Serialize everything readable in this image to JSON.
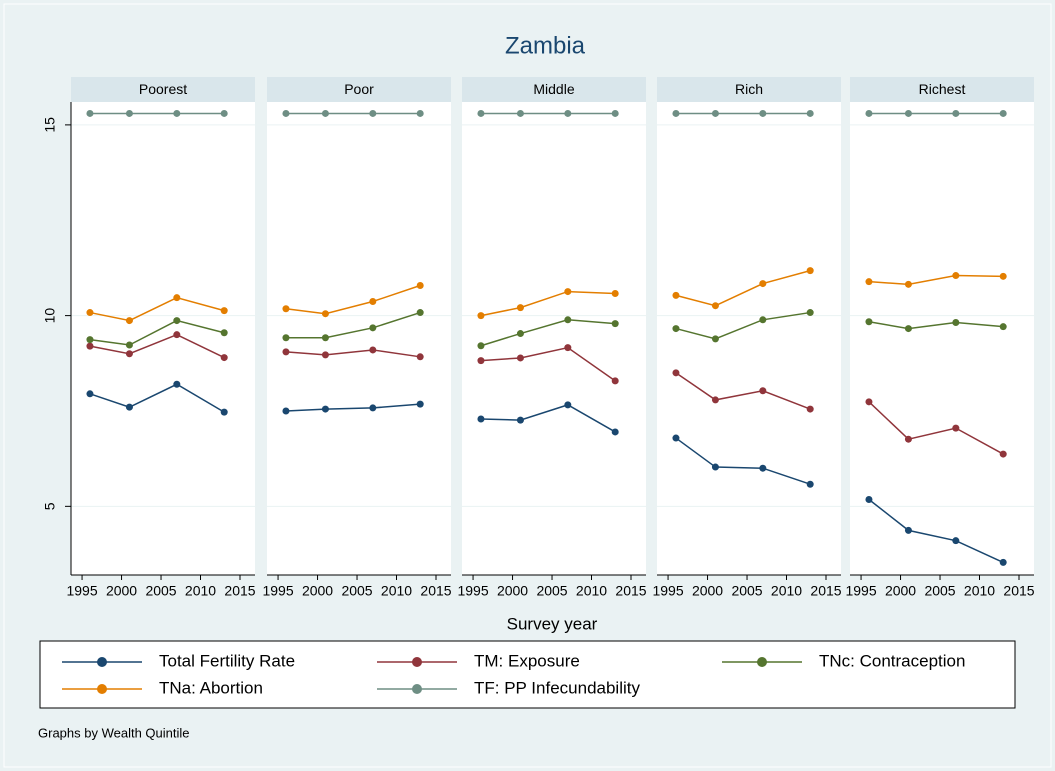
{
  "title": "Zambia",
  "x_label": "Survey year",
  "note": "Graphs by Wealth Quintile",
  "chart_data": [
    {
      "type": "line",
      "title": "Poorest",
      "x": [
        1996,
        2001,
        2007,
        2013
      ],
      "xlim": [
        1993.6,
        2016.9
      ],
      "xticks": [
        1995,
        2000,
        2005,
        2010,
        2015
      ],
      "ylim": [
        3.2,
        15.6
      ],
      "yticks": [
        5,
        10,
        15
      ],
      "grid": true,
      "series": [
        {
          "name": "Total Fertility Rate",
          "color": "#1a476f",
          "values": [
            7.95,
            7.6,
            8.2,
            7.47
          ]
        },
        {
          "name": "TM: Exposure",
          "color": "#90353b",
          "values": [
            9.2,
            9.0,
            9.5,
            8.9
          ]
        },
        {
          "name": "TNc: Contraception",
          "color": "#55752f",
          "values": [
            9.37,
            9.23,
            9.87,
            9.55
          ]
        },
        {
          "name": "TNa: Abortion",
          "color": "#e37e00",
          "values": [
            10.08,
            9.87,
            10.47,
            10.13
          ]
        },
        {
          "name": "TF: PP Infecundability",
          "color": "#6e8e84",
          "values": [
            15.3,
            15.3,
            15.3,
            15.3
          ]
        }
      ]
    },
    {
      "type": "line",
      "title": "Poor",
      "x": [
        1996,
        2001,
        2007,
        2013
      ],
      "xlim": [
        1993.6,
        2016.9
      ],
      "xticks": [
        1995,
        2000,
        2005,
        2010,
        2015
      ],
      "ylim": [
        3.2,
        15.6
      ],
      "yticks": [
        5,
        10,
        15
      ],
      "grid": true,
      "series": [
        {
          "name": "Total Fertility Rate",
          "color": "#1a476f",
          "values": [
            7.5,
            7.55,
            7.58,
            7.68
          ]
        },
        {
          "name": "TM: Exposure",
          "color": "#90353b",
          "values": [
            9.05,
            8.97,
            9.1,
            8.92
          ]
        },
        {
          "name": "TNc: Contraception",
          "color": "#55752f",
          "values": [
            9.42,
            9.42,
            9.68,
            10.08
          ]
        },
        {
          "name": "TNa: Abortion",
          "color": "#e37e00",
          "values": [
            10.18,
            10.05,
            10.37,
            10.79
          ]
        },
        {
          "name": "TF: PP Infecundability",
          "color": "#6e8e84",
          "values": [
            15.3,
            15.3,
            15.3,
            15.3
          ]
        }
      ]
    },
    {
      "type": "line",
      "title": "Middle",
      "x": [
        1996,
        2001,
        2007,
        2013
      ],
      "xlim": [
        1993.6,
        2016.9
      ],
      "xticks": [
        1995,
        2000,
        2005,
        2010,
        2015
      ],
      "ylim": [
        3.2,
        15.6
      ],
      "yticks": [
        5,
        10,
        15
      ],
      "grid": true,
      "series": [
        {
          "name": "Total Fertility Rate",
          "color": "#1a476f",
          "values": [
            7.29,
            7.26,
            7.66,
            6.95
          ]
        },
        {
          "name": "TM: Exposure",
          "color": "#90353b",
          "values": [
            8.82,
            8.89,
            9.16,
            8.29
          ]
        },
        {
          "name": "TNc: Contraception",
          "color": "#55752f",
          "values": [
            9.21,
            9.53,
            9.89,
            9.79
          ]
        },
        {
          "name": "TNa: Abortion",
          "color": "#e37e00",
          "values": [
            10.0,
            10.21,
            10.63,
            10.58
          ]
        },
        {
          "name": "TF: PP Infecundability",
          "color": "#6e8e84",
          "values": [
            15.3,
            15.3,
            15.3,
            15.3
          ]
        }
      ]
    },
    {
      "type": "line",
      "title": "Rich",
      "x": [
        1996,
        2001,
        2007,
        2013
      ],
      "xlim": [
        1993.6,
        2016.9
      ],
      "xticks": [
        1995,
        2000,
        2005,
        2010,
        2015
      ],
      "ylim": [
        3.2,
        15.6
      ],
      "yticks": [
        5,
        10,
        15
      ],
      "grid": true,
      "series": [
        {
          "name": "Total Fertility Rate",
          "color": "#1a476f",
          "values": [
            6.79,
            6.03,
            6.0,
            5.58
          ]
        },
        {
          "name": "TM: Exposure",
          "color": "#90353b",
          "values": [
            8.5,
            7.79,
            8.03,
            7.55
          ]
        },
        {
          "name": "TNc: Contraception",
          "color": "#55752f",
          "values": [
            9.66,
            9.39,
            9.89,
            10.08
          ]
        },
        {
          "name": "TNa: Abortion",
          "color": "#e37e00",
          "values": [
            10.53,
            10.26,
            10.84,
            11.18
          ]
        },
        {
          "name": "TF: PP Infecundability",
          "color": "#6e8e84",
          "values": [
            15.3,
            15.3,
            15.3,
            15.3
          ]
        }
      ]
    },
    {
      "type": "line",
      "title": "Richest",
      "x": [
        1996,
        2001,
        2007,
        2013
      ],
      "xlim": [
        1993.6,
        2016.9
      ],
      "xticks": [
        1995,
        2000,
        2005,
        2010,
        2015
      ],
      "ylim": [
        3.2,
        15.6
      ],
      "yticks": [
        5,
        10,
        15
      ],
      "grid": true,
      "series": [
        {
          "name": "Total Fertility Rate",
          "color": "#1a476f",
          "values": [
            5.18,
            4.37,
            4.1,
            3.53
          ]
        },
        {
          "name": "TM: Exposure",
          "color": "#90353b",
          "values": [
            7.74,
            6.76,
            7.05,
            6.37
          ]
        },
        {
          "name": "TNc: Contraception",
          "color": "#55752f",
          "values": [
            9.84,
            9.66,
            9.82,
            9.71
          ]
        },
        {
          "name": "TNa: Abortion",
          "color": "#e37e00",
          "values": [
            10.89,
            10.82,
            11.05,
            11.03
          ]
        },
        {
          "name": "TF: PP Infecundability",
          "color": "#6e8e84",
          "values": [
            15.3,
            15.3,
            15.3,
            15.3
          ]
        }
      ]
    }
  ]
}
